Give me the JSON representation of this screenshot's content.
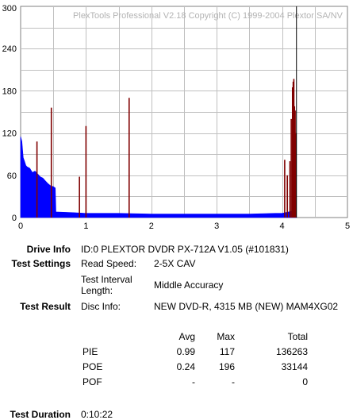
{
  "chart_data": {
    "type": "bar",
    "title": "PlexTools Professional V2.18 Copyright (C) 1999-2004 Plextor SA/NV",
    "xlim": [
      0,
      5
    ],
    "ylim": [
      0,
      300
    ],
    "x_ticks": [
      "0",
      "1",
      "2",
      "3",
      "4",
      "5"
    ],
    "y_ticks": [
      "0",
      "60",
      "120",
      "180",
      "240",
      "300"
    ],
    "grid": true,
    "series": [
      {
        "kind": "PIE",
        "color": "#0000ff",
        "profile": [
          [
            0.0,
            115
          ],
          [
            0.02,
            108
          ],
          [
            0.04,
            85
          ],
          [
            0.06,
            80
          ],
          [
            0.08,
            74
          ],
          [
            0.1,
            72
          ],
          [
            0.14,
            70
          ],
          [
            0.18,
            64
          ],
          [
            0.22,
            66
          ],
          [
            0.26,
            62
          ],
          [
            0.3,
            58
          ],
          [
            0.34,
            56
          ],
          [
            0.38,
            52
          ],
          [
            0.42,
            48
          ],
          [
            0.46,
            45
          ],
          [
            0.5,
            44
          ],
          [
            0.53,
            42
          ],
          [
            0.54,
            8
          ],
          [
            0.8,
            7
          ],
          [
            1.0,
            6
          ],
          [
            1.5,
            6
          ],
          [
            2.0,
            5
          ],
          [
            2.5,
            5
          ],
          [
            3.0,
            5
          ],
          [
            3.5,
            5
          ],
          [
            3.9,
            6
          ],
          [
            4.0,
            6
          ],
          [
            4.1,
            8
          ],
          [
            4.2,
            10
          ],
          [
            4.22,
            0
          ]
        ]
      },
      {
        "kind": "POE",
        "color": "#800000",
        "spikes": [
          [
            0.25,
            108
          ],
          [
            0.47,
            156
          ],
          [
            0.9,
            58
          ],
          [
            1.0,
            130
          ],
          [
            1.66,
            170
          ],
          [
            4.04,
            82
          ],
          [
            4.08,
            60
          ],
          [
            4.12,
            80
          ],
          [
            4.14,
            140
          ],
          [
            4.16,
            185
          ],
          [
            4.17,
            193
          ],
          [
            4.18,
            197
          ],
          [
            4.19,
            158
          ],
          [
            4.2,
            152
          ],
          [
            4.21,
            120
          ]
        ]
      }
    ],
    "marker": {
      "x": 4.22,
      "color": "#000000"
    }
  },
  "info": {
    "drive_info": {
      "label": "Drive Info",
      "value": "ID:0 PLEXTOR DVDR PX-712A V1.05 (#101831)"
    },
    "test_settings": {
      "label": "Test Settings",
      "read_speed_label": "Read Speed:",
      "read_speed_value": "2-5X CAV",
      "interval_label_1": "Test Interval",
      "interval_label_2": "Length:",
      "interval_value": "Middle Accuracy"
    },
    "test_result": {
      "label": "Test Result",
      "disc_info_label": "Disc Info:",
      "disc_info_value": "NEW DVD-R, 4315 MB (NEW) MAM4XG02"
    },
    "stats": {
      "headers": [
        "Avg",
        "Max",
        "Total"
      ],
      "rows": [
        {
          "name": "PIE",
          "avg": "0.99",
          "max": "117",
          "total": "136263"
        },
        {
          "name": "POE",
          "avg": "0.24",
          "max": "196",
          "total": "33144"
        },
        {
          "name": "POF",
          "avg": "-",
          "max": "-",
          "total": "0"
        }
      ]
    },
    "duration": {
      "label": "Test Duration",
      "value": "0:10:22"
    }
  }
}
